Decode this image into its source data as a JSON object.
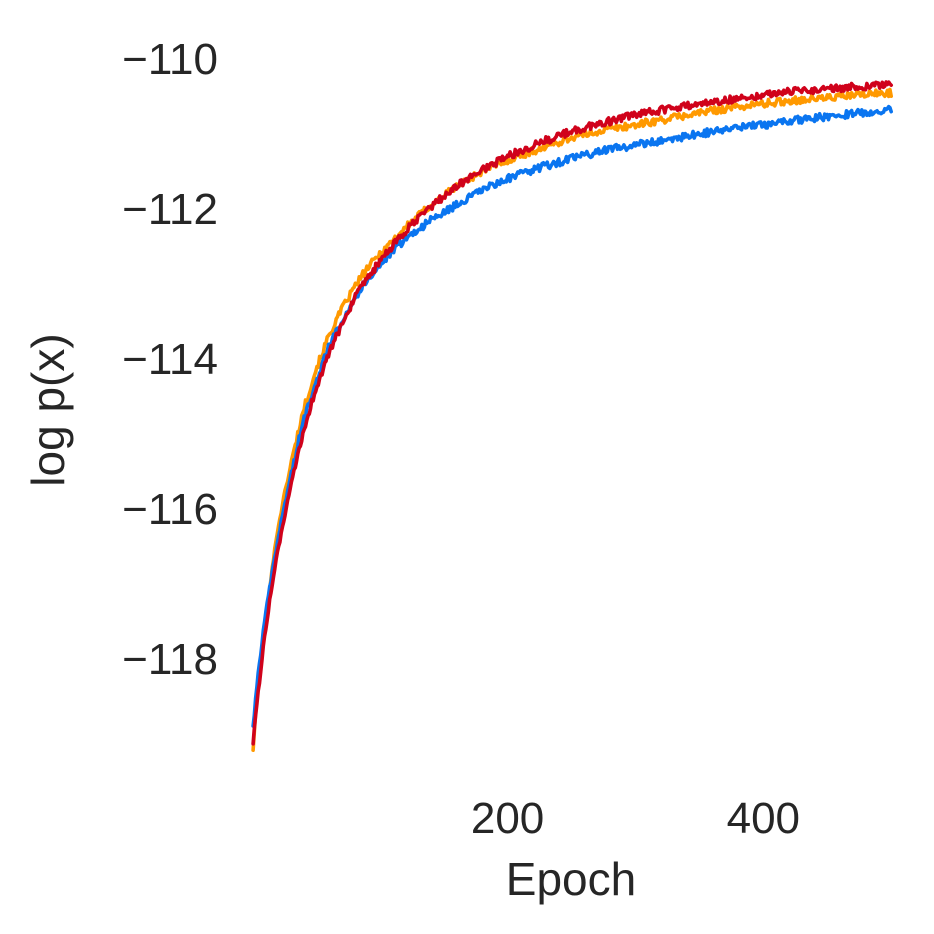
{
  "chart_data": {
    "type": "line",
    "title": "",
    "xlabel": "Epoch",
    "ylabel": "log p(x)",
    "xlim": [
      -10,
      510
    ],
    "ylim": [
      -119.45,
      -109.55
    ],
    "xticks": [
      200,
      400
    ],
    "xtick_labels": [
      "200",
      "400"
    ],
    "yticks": [
      -110,
      -112,
      -114,
      -116,
      -118
    ],
    "ytick_labels": [
      "−110",
      "−112",
      "−114",
      "−116",
      "−118"
    ],
    "grid": false,
    "legend": "none",
    "series": [
      {
        "color": "#ff9900",
        "x": [
          1,
          5,
          10,
          15,
          20,
          25,
          30,
          40,
          50,
          60,
          70,
          80,
          90,
          100,
          120,
          140,
          160,
          180,
          200,
          225,
          250,
          275,
          300,
          325,
          350,
          375,
          400,
          425,
          450,
          475,
          500
        ],
        "y": [
          -119.2,
          -118.3,
          -117.6,
          -116.9,
          -116.3,
          -115.85,
          -115.45,
          -114.7,
          -114.15,
          -113.7,
          -113.35,
          -113.05,
          -112.8,
          -112.6,
          -112.25,
          -111.95,
          -111.7,
          -111.5,
          -111.35,
          -111.2,
          -111.05,
          -110.95,
          -110.88,
          -110.8,
          -110.72,
          -110.65,
          -110.6,
          -110.55,
          -110.52,
          -110.48,
          -110.45
        ]
      },
      {
        "color": "#0a75f0",
        "x": [
          1,
          5,
          10,
          15,
          20,
          25,
          30,
          40,
          50,
          60,
          70,
          80,
          90,
          100,
          120,
          140,
          160,
          180,
          200,
          225,
          250,
          275,
          300,
          325,
          350,
          375,
          400,
          425,
          450,
          475,
          500
        ],
        "y": [
          -118.9,
          -118.2,
          -117.5,
          -116.95,
          -116.45,
          -116.0,
          -115.6,
          -114.85,
          -114.3,
          -113.85,
          -113.5,
          -113.2,
          -112.95,
          -112.75,
          -112.4,
          -112.15,
          -111.95,
          -111.75,
          -111.6,
          -111.45,
          -111.33,
          -111.22,
          -111.15,
          -111.08,
          -111.0,
          -110.93,
          -110.88,
          -110.82,
          -110.77,
          -110.72,
          -110.68
        ]
      },
      {
        "color": "#d0021b",
        "x": [
          1,
          5,
          10,
          15,
          20,
          25,
          30,
          40,
          50,
          60,
          70,
          80,
          90,
          100,
          120,
          140,
          160,
          180,
          200,
          225,
          250,
          275,
          300,
          325,
          350,
          375,
          400,
          425,
          450,
          475,
          500
        ],
        "y": [
          -119.1,
          -118.45,
          -117.7,
          -117.1,
          -116.6,
          -116.15,
          -115.75,
          -115.0,
          -114.4,
          -113.95,
          -113.55,
          -113.2,
          -112.95,
          -112.7,
          -112.3,
          -111.97,
          -111.7,
          -111.48,
          -111.3,
          -111.12,
          -110.97,
          -110.85,
          -110.75,
          -110.67,
          -110.6,
          -110.54,
          -110.48,
          -110.43,
          -110.4,
          -110.37,
          -110.35
        ]
      }
    ]
  }
}
